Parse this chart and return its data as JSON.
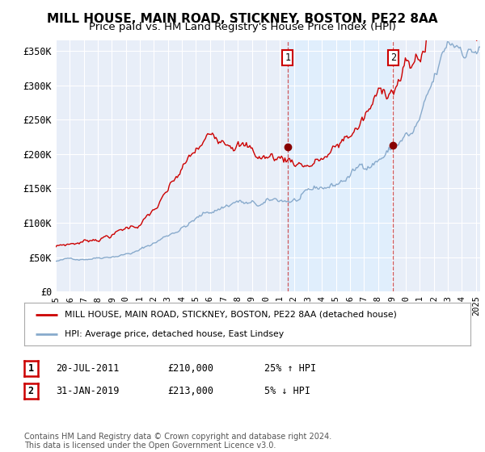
{
  "title": "MILL HOUSE, MAIN ROAD, STICKNEY, BOSTON, PE22 8AA",
  "subtitle": "Price paid vs. HM Land Registry's House Price Index (HPI)",
  "ylabel_ticks": [
    "£0",
    "£50K",
    "£100K",
    "£150K",
    "£200K",
    "£250K",
    "£300K",
    "£350K"
  ],
  "ytick_values": [
    0,
    50000,
    100000,
    150000,
    200000,
    250000,
    300000,
    350000
  ],
  "ylim": [
    0,
    365000
  ],
  "xlim_start": 1995.0,
  "xlim_end": 2025.3,
  "red_line_color": "#cc0000",
  "blue_line_color": "#88aacc",
  "shade_color": "#ddeeff",
  "marker1_x": 2011.55,
  "marker1_y": 210000,
  "marker2_x": 2019.08,
  "marker2_y": 213000,
  "vline1_x": 2011.55,
  "vline2_x": 2019.08,
  "legend_label1": "MILL HOUSE, MAIN ROAD, STICKNEY, BOSTON, PE22 8AA (detached house)",
  "legend_label2": "HPI: Average price, detached house, East Lindsey",
  "annotation1": "1",
  "annotation2": "2",
  "table_row1": [
    "1",
    "20-JUL-2011",
    "£210,000",
    "25% ↑ HPI"
  ],
  "table_row2": [
    "2",
    "31-JAN-2019",
    "£213,000",
    "5% ↓ HPI"
  ],
  "footnote": "Contains HM Land Registry data © Crown copyright and database right 2024.\nThis data is licensed under the Open Government Licence v3.0.",
  "background_color": "#ffffff",
  "plot_bg_color": "#e8eef8",
  "grid_color": "#ffffff",
  "title_fontsize": 11,
  "subtitle_fontsize": 9.5
}
